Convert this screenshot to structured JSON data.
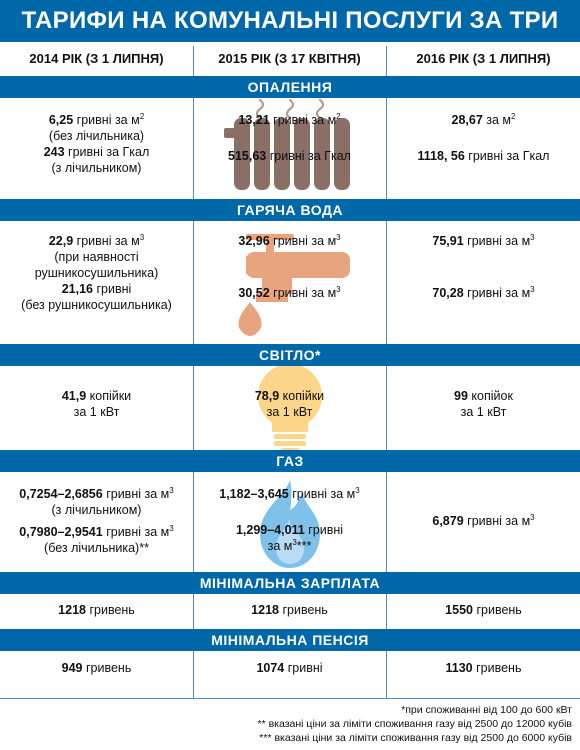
{
  "title": "ТАРИФИ НА КОМУНАЛЬНІ ПОСЛУГИ ЗА ТРИ РОКИ",
  "columns": [
    "2014 РІК (З 1 ЛИПНЯ)",
    "2015 РІК (З 17 КВІТНЯ)",
    "2016 РІК (З 1 ЛИПНЯ)"
  ],
  "sections": {
    "heating": {
      "label": "ОПАЛЕННЯ",
      "c2014": {
        "v1": "6,25",
        "t1": " гривні за м",
        "s1": "2",
        "n1": "(без лічильника)",
        "v2": "243",
        "t2": " гривні за Гкал",
        "n2": "(з лічильником)"
      },
      "c2015": {
        "v1": "13,21",
        "t1": " гривні за м",
        "s1": "2",
        "v2": "515,63",
        "t2": " гривні за Гкал"
      },
      "c2016": {
        "v1": "28,67",
        "t1": " за м",
        "s1": "2",
        "v2": "1118, 56",
        "t2": " гривні за Гкал"
      }
    },
    "hot_water": {
      "label": "ГАРЯЧА ВОДА",
      "c2014": {
        "v1": "22,9",
        "t1": " гривні за м",
        "s1": "3",
        "n1a": "(при наявності",
        "n1b": "рушникосушильника)",
        "v2": "21,16",
        "t2": " гривні",
        "n2": "(без рушникосушильника)"
      },
      "c2015": {
        "v1": "32,96",
        "t1": " гривні за м",
        "s1": "3",
        "v2": "30,52",
        "t2": " гривні за м",
        "s2": "3"
      },
      "c2016": {
        "v1": "75,91",
        "t1": " гривні за м",
        "s1": "3",
        "v2": "70,28",
        "t2": " гривні за м",
        "s2": "3"
      }
    },
    "electricity": {
      "label": "СВІТЛО*",
      "c2014": {
        "v1": "41,9",
        "t1": " копійки",
        "n1": "за 1 кВт"
      },
      "c2015": {
        "v1": "78,9",
        "t1": " копійки",
        "n1": "за 1 кВт"
      },
      "c2016": {
        "v1": "99",
        "t1": " копійок",
        "n1": "за 1 кВт"
      }
    },
    "gas": {
      "label": "ГАЗ",
      "c2014": {
        "v1": "0,7254–2,6856",
        "t1": " гривні за м",
        "s1": "3",
        "n1": "(з лічильником)",
        "v2": "0,7980–2,9541",
        "t2": " гривні за м",
        "s2": "3",
        "n2": "(без лічильника)**"
      },
      "c2015": {
        "v1": "1,182–3,645",
        "t1": " гривні за м",
        "s1": "3",
        "v2": "1,299–4,011",
        "t2": " гривні",
        "n2a": "за м",
        "n2s": "3",
        "n2b": "***"
      },
      "c2016": {
        "v1": "6,879",
        "t1": " гривні за м",
        "s1": "3"
      }
    },
    "min_wage": {
      "label": "МІНІМАЛЬНА ЗАРПЛАТА",
      "c2014": {
        "v1": "1218",
        "t1": " гривень"
      },
      "c2015": {
        "v1": "1218",
        "t1": " гривень"
      },
      "c2016": {
        "v1": "1550",
        "t1": " гривень"
      }
    },
    "min_pension": {
      "label": "МІНІМАЛЬНА ПЕНСІЯ",
      "c2014": {
        "v1": "949",
        "t1": " гривень"
      },
      "c2015": {
        "v1": "1074",
        "t1": " гривні"
      },
      "c2016": {
        "v1": "1130",
        "t1": " гривень"
      }
    }
  },
  "footnotes": [
    "*при споживанні від 100 до 600 кВт",
    "** вказані ціни за ліміти споживання газу від 2500 до 12000 кубів",
    "*** вказані ціни за ліміти споживання газу від 2500 до 6000 кубів"
  ],
  "colors": {
    "accent": "#0067a8",
    "radiator": "#8a6f66",
    "faucet": "#e8a37f",
    "bulb": "#fbd58a",
    "flame": "#7fc1ea"
  }
}
